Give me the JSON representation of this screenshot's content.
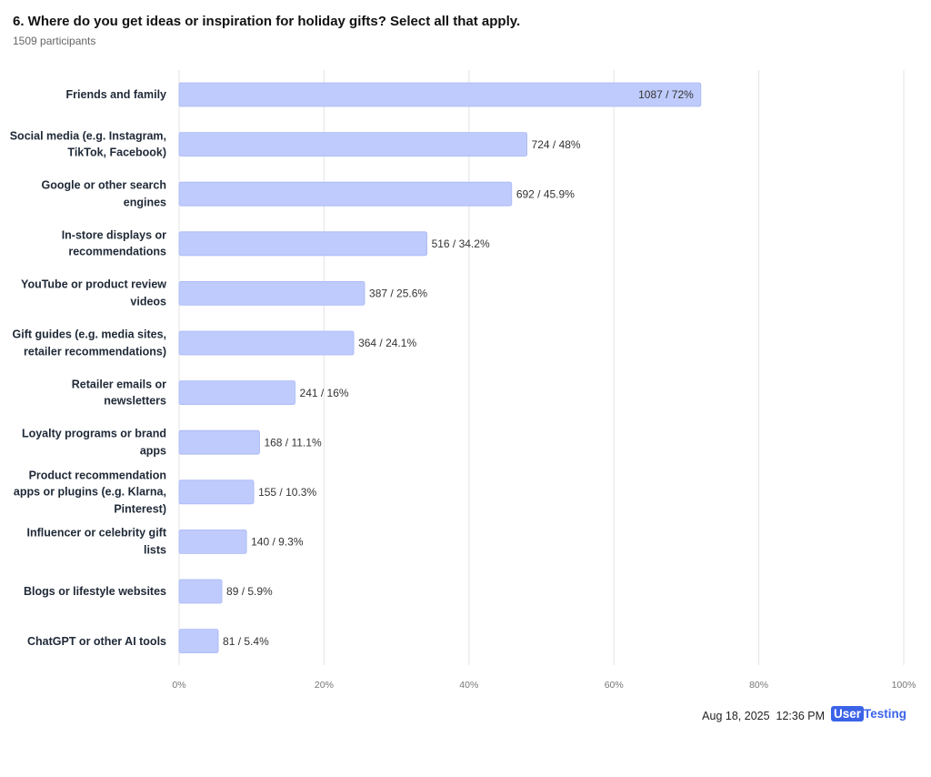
{
  "chart_data": {
    "type": "bar",
    "title": "6. Where do you get ideas or inspiration for holiday gifts? Select all that apply.",
    "subtitle": "1509 participants",
    "categories": [
      "Friends and family",
      "Social media (e.g. Instagram, TikTok, Facebook)",
      "Google or other search engines",
      "In-store displays or recommendations",
      "YouTube or product review videos",
      "Gift guides (e.g. media sites, retailer recommendations)",
      "Retailer emails or newsletters",
      "Loyalty programs or brand apps",
      "Product recommendation apps or plugins (e.g. Klarna, Pinterest)",
      "Influencer or celebrity gift lists",
      "Blogs or lifestyle websites",
      "ChatGPT or other AI tools"
    ],
    "values": [
      72,
      48,
      45.9,
      34.2,
      25.6,
      24.1,
      16,
      11.1,
      10.3,
      9.3,
      5.9,
      5.4
    ],
    "value_labels": [
      "1087 / 72%",
      "724 / 48%",
      "692 / 45.9%",
      "516 / 34.2%",
      "387 / 25.6%",
      "364 / 24.1%",
      "241 / 16%",
      "168 / 11.1%",
      "155 / 10.3%",
      "140 / 9.3%",
      "89 / 5.9%",
      "81 / 5.4%"
    ],
    "color": "#bfcbfc",
    "xlim": [
      0,
      100
    ],
    "xticks": [
      {
        "value": 0,
        "label": "0%"
      },
      {
        "value": 20,
        "label": "20%"
      },
      {
        "value": 40,
        "label": "40%"
      },
      {
        "value": 60,
        "label": "60%"
      },
      {
        "value": 80,
        "label": "80%"
      },
      {
        "value": 100,
        "label": "100%"
      }
    ],
    "grid": true
  },
  "footer": {
    "timestamp": "Aug 18, 2025  12:36 PM",
    "logo_user": "User",
    "logo_testing": "Testing"
  }
}
